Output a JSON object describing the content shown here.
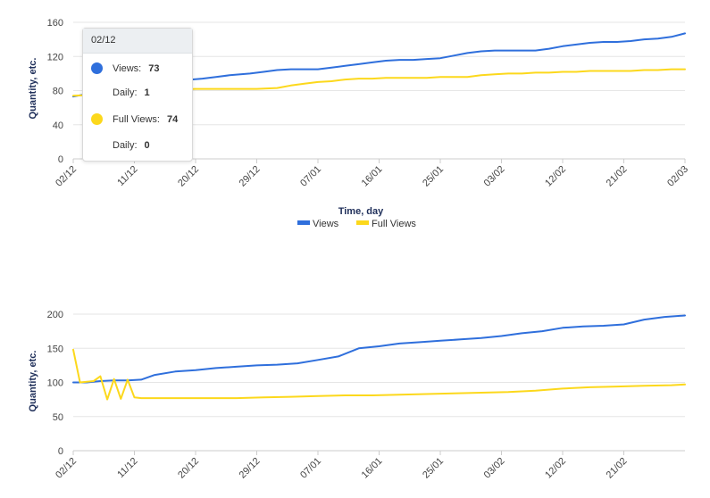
{
  "colors": {
    "views": "#2f6fdc",
    "full_views": "#fcd81c",
    "grid": "#e6e6e6",
    "axis": "#cccccc"
  },
  "chart_data": [
    {
      "type": "line",
      "ylabel": "Quantity, etc.",
      "xlabel": "Time, day",
      "ylim": [
        0,
        160
      ],
      "yticks": [
        0,
        40,
        80,
        120,
        160
      ],
      "x_range": [
        "2021-12-02",
        "2022-03-02"
      ],
      "x_ticks": [
        {
          "date": "2021-12-02",
          "label": "02/12"
        },
        {
          "date": "2021-12-11",
          "label": "11/12"
        },
        {
          "date": "2021-12-20",
          "label": "20/12"
        },
        {
          "date": "2021-12-29",
          "label": "29/12"
        },
        {
          "date": "2022-01-07",
          "label": "07/01"
        },
        {
          "date": "2022-01-16",
          "label": "16/01"
        },
        {
          "date": "2022-01-25",
          "label": "25/01"
        },
        {
          "date": "2022-02-03",
          "label": "03/02"
        },
        {
          "date": "2022-02-12",
          "label": "12/02"
        },
        {
          "date": "2022-02-21",
          "label": "21/02"
        },
        {
          "date": "2022-03-02",
          "label": "02/03"
        }
      ],
      "legend": {
        "position": "bottom-center",
        "items": [
          "Views",
          "Full Views"
        ]
      },
      "series": [
        {
          "name": "Views",
          "color": "#2f6fdc",
          "x": [
            "2021-12-02",
            "2021-12-04",
            "2021-12-07",
            "2021-12-10",
            "2021-12-13",
            "2021-12-16",
            "2021-12-18",
            "2021-12-21",
            "2021-12-23",
            "2021-12-25",
            "2021-12-28",
            "2021-12-30",
            "2022-01-01",
            "2022-01-03",
            "2022-01-05",
            "2022-01-07",
            "2022-01-09",
            "2022-01-11",
            "2022-01-13",
            "2022-01-15",
            "2022-01-17",
            "2022-01-19",
            "2022-01-21",
            "2022-01-23",
            "2022-01-25",
            "2022-01-27",
            "2022-01-29",
            "2022-01-31",
            "2022-02-02",
            "2022-02-04",
            "2022-02-06",
            "2022-02-08",
            "2022-02-10",
            "2022-02-12",
            "2022-02-14",
            "2022-02-16",
            "2022-02-18",
            "2022-02-20",
            "2022-02-22",
            "2022-02-24",
            "2022-02-26",
            "2022-02-28",
            "2022-03-02"
          ],
          "values": [
            73,
            76,
            79,
            82,
            85,
            89,
            92,
            94,
            96,
            98,
            100,
            102,
            104,
            105,
            105,
            105,
            107,
            109,
            111,
            113,
            115,
            116,
            116,
            117,
            118,
            121,
            124,
            126,
            127,
            127,
            127,
            127,
            129,
            132,
            134,
            136,
            137,
            137,
            138,
            140,
            141,
            143,
            147
          ]
        },
        {
          "name": "Full Views",
          "color": "#fcd81c",
          "x": [
            "2021-12-02",
            "2021-12-05",
            "2021-12-08",
            "2021-12-11",
            "2021-12-14",
            "2021-12-17",
            "2021-12-20",
            "2021-12-23",
            "2021-12-26",
            "2021-12-29",
            "2022-01-01",
            "2022-01-03",
            "2022-01-05",
            "2022-01-07",
            "2022-01-09",
            "2022-01-11",
            "2022-01-13",
            "2022-01-15",
            "2022-01-17",
            "2022-01-19",
            "2022-01-21",
            "2022-01-23",
            "2022-01-25",
            "2022-01-27",
            "2022-01-29",
            "2022-01-31",
            "2022-02-02",
            "2022-02-04",
            "2022-02-06",
            "2022-02-08",
            "2022-02-10",
            "2022-02-12",
            "2022-02-14",
            "2022-02-16",
            "2022-02-18",
            "2022-02-20",
            "2022-02-22",
            "2022-02-24",
            "2022-02-26",
            "2022-02-28",
            "2022-03-02"
          ],
          "values": [
            74,
            75,
            77,
            79,
            80,
            81,
            82,
            82,
            82,
            82,
            83,
            86,
            88,
            90,
            91,
            93,
            94,
            94,
            95,
            95,
            95,
            95,
            96,
            96,
            96,
            98,
            99,
            100,
            100,
            101,
            101,
            102,
            102,
            103,
            103,
            103,
            103,
            104,
            104,
            105,
            105
          ]
        }
      ],
      "tooltip": {
        "date": "02/12",
        "entries": [
          {
            "series": "Views",
            "label": "Views:",
            "value": 73,
            "daily_label": "Daily:",
            "daily": 1,
            "color": "#2f6fdc"
          },
          {
            "series": "Full Views",
            "label": "Full Views:",
            "value": 74,
            "daily_label": "Daily:",
            "daily": 0,
            "color": "#fcd81c"
          }
        ]
      }
    },
    {
      "type": "line",
      "ylabel": "Quantity, etc.",
      "ylim": [
        0,
        200
      ],
      "yticks": [
        0,
        50,
        100,
        150,
        200
      ],
      "x_range": [
        "2021-12-02",
        "2022-03-02"
      ],
      "x_ticks": [
        {
          "date": "2021-12-02",
          "label": "02/12"
        },
        {
          "date": "2021-12-11",
          "label": "11/12"
        },
        {
          "date": "2021-12-20",
          "label": "20/12"
        },
        {
          "date": "2021-12-29",
          "label": "29/12"
        },
        {
          "date": "2022-01-07",
          "label": "07/01"
        },
        {
          "date": "2022-01-16",
          "label": "16/01"
        },
        {
          "date": "2022-01-25",
          "label": "25/01"
        },
        {
          "date": "2022-02-03",
          "label": "03/02"
        },
        {
          "date": "2022-02-12",
          "label": "12/02"
        },
        {
          "date": "2022-02-21",
          "label": "21/02"
        }
      ],
      "series": [
        {
          "name": "Views",
          "color": "#2f6fdc",
          "x": [
            "2021-12-02",
            "2021-12-04",
            "2021-12-06",
            "2021-12-08",
            "2021-12-10",
            "2021-12-12",
            "2021-12-14",
            "2021-12-17",
            "2021-12-20",
            "2021-12-23",
            "2021-12-26",
            "2021-12-29",
            "2022-01-01",
            "2022-01-04",
            "2022-01-07",
            "2022-01-10",
            "2022-01-13",
            "2022-01-16",
            "2022-01-19",
            "2022-01-22",
            "2022-01-25",
            "2022-01-28",
            "2022-01-31",
            "2022-02-03",
            "2022-02-06",
            "2022-02-09",
            "2022-02-12",
            "2022-02-15",
            "2022-02-18",
            "2022-02-21",
            "2022-02-24",
            "2022-02-27",
            "2022-03-02"
          ],
          "values": [
            100,
            100,
            102,
            103,
            103,
            104,
            111,
            116,
            118,
            121,
            123,
            125,
            126,
            128,
            133,
            138,
            150,
            153,
            157,
            159,
            161,
            163,
            165,
            168,
            172,
            175,
            180,
            182,
            183,
            185,
            192,
            196,
            198
          ]
        },
        {
          "name": "Full Views",
          "color": "#fcd81c",
          "x": [
            "2021-12-02",
            "2021-12-03",
            "2021-12-05",
            "2021-12-06",
            "2021-12-07",
            "2021-12-08",
            "2021-12-09",
            "2021-12-10",
            "2021-12-11",
            "2021-12-12",
            "2021-12-14",
            "2021-12-18",
            "2021-12-22",
            "2021-12-26",
            "2021-12-30",
            "2022-01-03",
            "2022-01-07",
            "2022-01-11",
            "2022-01-15",
            "2022-01-19",
            "2022-01-23",
            "2022-01-27",
            "2022-01-31",
            "2022-02-04",
            "2022-02-08",
            "2022-02-12",
            "2022-02-16",
            "2022-02-20",
            "2022-02-24",
            "2022-02-28",
            "2022-03-02"
          ],
          "values": [
            148,
            100,
            102,
            109,
            75,
            105,
            76,
            104,
            78,
            77,
            77,
            77,
            77,
            77,
            78,
            79,
            80,
            81,
            81,
            82,
            83,
            84,
            85,
            86,
            88,
            91,
            93,
            94,
            95,
            96,
            97
          ]
        }
      ]
    }
  ]
}
